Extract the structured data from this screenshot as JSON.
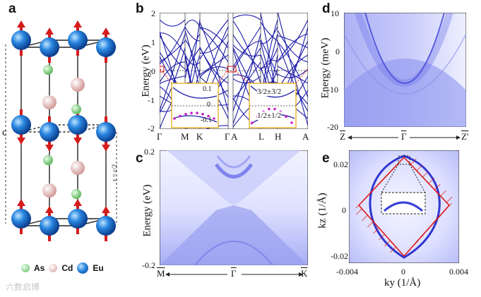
{
  "panels": {
    "a": {
      "label": "a",
      "c_label": "c",
      "tau_label": "τ = c/2",
      "legend": [
        {
          "name": "As",
          "color": "#8fd08f"
        },
        {
          "name": "Cd",
          "color": "#e6b5b5"
        },
        {
          "name": "Eu",
          "color": "#1f6fd6"
        }
      ]
    },
    "b": {
      "label": "b",
      "ylabel": "Energy (eV)",
      "yticks": [
        "2",
        "1",
        "0",
        "-1",
        "-2"
      ],
      "kpoints": [
        "Γ",
        "M",
        "K",
        "Γ",
        "A",
        "L",
        "H",
        "A"
      ],
      "inset_ticks": [
        "0.1",
        "0",
        "-0.1"
      ],
      "inset_labels": [
        "3/2±3/2",
        "1/2±1/2"
      ]
    },
    "c": {
      "label": "c",
      "ylabel": "Energy (eV)",
      "yticks": [
        "0.2",
        "-0.2"
      ],
      "xticks": [
        "M",
        "Γ",
        "K"
      ]
    },
    "d": {
      "label": "d",
      "ylabel": "Energy (meV)",
      "yticks": [
        "10",
        "0",
        "-10",
        "-20"
      ],
      "xticks": [
        "Z",
        "Γ",
        "Z'"
      ]
    },
    "e": {
      "label": "e",
      "ylabel": "kz (1/Å)",
      "xlabel": "ky (1/Å)",
      "yticks": [
        "0.02",
        "0",
        "-0.02"
      ],
      "xticks": [
        "-0.004",
        "0",
        "0.004"
      ]
    }
  },
  "watermark": "六数启博"
}
